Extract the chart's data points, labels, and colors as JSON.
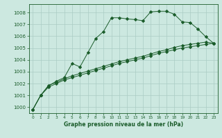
{
  "xlabel": "Graphe pression niveau de la mer (hPa)",
  "bg_color": "#cce8e0",
  "grid_color": "#aaccC4",
  "line_color": "#1a5c2a",
  "ylim": [
    999.5,
    1008.7
  ],
  "xlim": [
    -0.5,
    23.5
  ],
  "yticks": [
    1000,
    1001,
    1002,
    1003,
    1004,
    1005,
    1006,
    1007,
    1008
  ],
  "xticks": [
    0,
    1,
    2,
    3,
    4,
    5,
    6,
    7,
    8,
    9,
    10,
    11,
    12,
    13,
    14,
    15,
    16,
    17,
    18,
    19,
    20,
    21,
    22,
    23
  ],
  "line1": [
    999.8,
    1001.0,
    1001.8,
    1002.2,
    1002.5,
    1003.7,
    1003.4,
    1004.6,
    1005.8,
    1006.4,
    1007.55,
    1007.55,
    1007.45,
    1007.4,
    1007.3,
    1008.05,
    1008.1,
    1008.1,
    1007.85,
    1007.2,
    1007.15,
    1006.6,
    1005.95,
    1005.4
  ],
  "line2": [
    999.8,
    1001.0,
    1001.85,
    1002.1,
    1002.4,
    1002.65,
    1002.85,
    1003.05,
    1003.25,
    1003.45,
    1003.65,
    1003.85,
    1004.0,
    1004.15,
    1004.3,
    1004.5,
    1004.7,
    1004.85,
    1005.05,
    1005.2,
    1005.3,
    1005.4,
    1005.5,
    1005.4
  ],
  "line3": [
    999.8,
    1001.0,
    1001.7,
    1002.0,
    1002.3,
    1002.5,
    1002.7,
    1002.9,
    1003.1,
    1003.3,
    1003.5,
    1003.7,
    1003.85,
    1004.0,
    1004.15,
    1004.35,
    1004.55,
    1004.7,
    1004.85,
    1005.0,
    1005.1,
    1005.2,
    1005.3,
    1005.4
  ]
}
